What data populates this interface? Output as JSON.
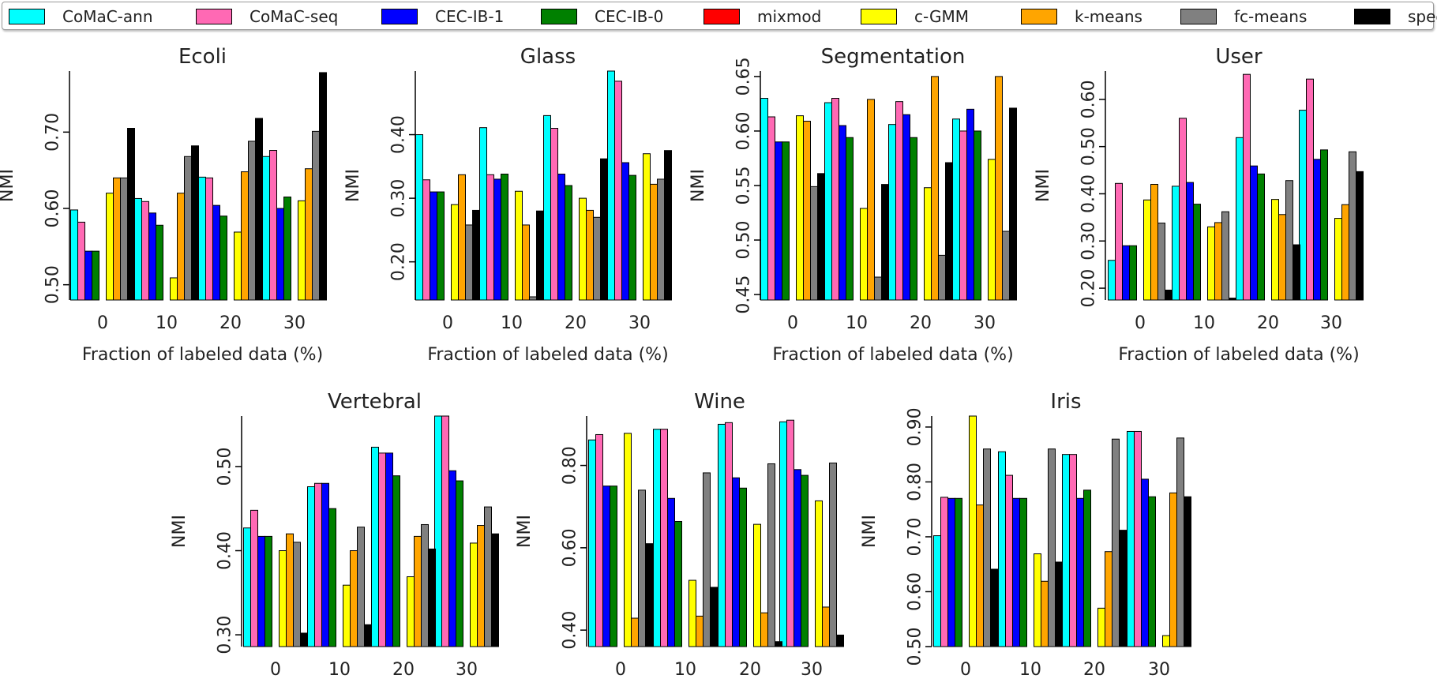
{
  "legend": {
    "items": [
      {
        "label": "CoMaC-ann",
        "color": "#00FFFF"
      },
      {
        "label": "CoMaC-seq",
        "color": "#FF69B4"
      },
      {
        "label": "CEC-IB-1",
        "color": "#0000FF"
      },
      {
        "label": "CEC-IB-0",
        "color": "#008000"
      },
      {
        "label": "mixmod",
        "color": "#FF0000"
      },
      {
        "label": "c-GMM",
        "color": "#FFFF00"
      },
      {
        "label": "k-means",
        "color": "#FFA500"
      },
      {
        "label": "fc-means",
        "color": "#808080"
      },
      {
        "label": "spec",
        "color": "#000000"
      }
    ]
  },
  "chart_data": [
    {
      "type": "bar",
      "title": "Ecoli",
      "xlabel": "Fraction of labeled data (%)",
      "ylabel": "NMI",
      "categories": [
        "0",
        "10",
        "20",
        "30"
      ],
      "ylim": [
        0.48,
        0.78
      ],
      "yticks": [
        0.5,
        0.6,
        0.7
      ],
      "ytick_labels": [
        "0.50",
        "0.60",
        "0.70"
      ],
      "series": [
        {
          "name": "CoMaC-ann",
          "values": [
            0.598,
            0.613,
            0.641,
            0.668
          ]
        },
        {
          "name": "CoMaC-seq",
          "values": [
            0.582,
            0.609,
            0.64,
            0.676
          ]
        },
        {
          "name": "CEC-IB-1",
          "values": [
            0.544,
            0.594,
            0.604,
            0.6
          ]
        },
        {
          "name": "CEC-IB-0",
          "values": [
            0.544,
            0.578,
            0.59,
            0.615
          ]
        },
        {
          "name": "mixmod",
          "values": [
            null,
            null,
            null,
            null
          ]
        },
        {
          "name": "c-GMM",
          "values": [
            0.62,
            0.509,
            0.569,
            0.61
          ]
        },
        {
          "name": "k-means",
          "values": [
            0.64,
            0.62,
            0.648,
            0.652
          ]
        },
        {
          "name": "fc-means",
          "values": [
            0.64,
            0.668,
            0.688,
            0.701
          ]
        },
        {
          "name": "spec",
          "values": [
            0.705,
            0.682,
            0.718,
            0.778
          ]
        }
      ]
    },
    {
      "type": "bar",
      "title": "Glass",
      "xlabel": "Fraction of labeled data (%)",
      "ylabel": "NMI",
      "categories": [
        "0",
        "10",
        "20",
        "30"
      ],
      "ylim": [
        0.14,
        0.5
      ],
      "yticks": [
        0.2,
        0.3,
        0.4
      ],
      "ytick_labels": [
        "0.20",
        "0.30",
        "0.40"
      ],
      "series": [
        {
          "name": "CoMaC-ann",
          "values": [
            0.4,
            0.411,
            0.43,
            0.5
          ]
        },
        {
          "name": "CoMaC-seq",
          "values": [
            0.329,
            0.337,
            0.41,
            0.484
          ]
        },
        {
          "name": "CEC-IB-1",
          "values": [
            0.31,
            0.33,
            0.338,
            0.356
          ]
        },
        {
          "name": "CEC-IB-0",
          "values": [
            0.31,
            0.338,
            0.32,
            0.336
          ]
        },
        {
          "name": "mixmod",
          "values": [
            null,
            null,
            null,
            null
          ]
        },
        {
          "name": "c-GMM",
          "values": [
            0.29,
            0.311,
            0.3,
            0.37
          ]
        },
        {
          "name": "k-means",
          "values": [
            0.337,
            0.258,
            0.281,
            0.322
          ]
        },
        {
          "name": "fc-means",
          "values": [
            0.258,
            0.145,
            0.27,
            0.33
          ]
        },
        {
          "name": "spec",
          "values": [
            0.281,
            0.28,
            0.362,
            0.375
          ]
        }
      ]
    },
    {
      "type": "bar",
      "title": "Segmentation",
      "xlabel": "Fraction of labeled data (%)",
      "ylabel": "NMI",
      "categories": [
        "0",
        "10",
        "20",
        "30"
      ],
      "ylim": [
        0.445,
        0.655
      ],
      "yticks": [
        0.45,
        0.5,
        0.55,
        0.6,
        0.65
      ],
      "ytick_labels": [
        "0.45",
        "0.50",
        "0.55",
        "0.60",
        "0.65"
      ],
      "series": [
        {
          "name": "CoMaC-ann",
          "values": [
            0.63,
            0.626,
            0.606,
            0.611
          ]
        },
        {
          "name": "CoMaC-seq",
          "values": [
            0.613,
            0.63,
            0.627,
            0.6
          ]
        },
        {
          "name": "CEC-IB-1",
          "values": [
            0.59,
            0.605,
            0.615,
            0.62
          ]
        },
        {
          "name": "CEC-IB-0",
          "values": [
            0.59,
            0.594,
            0.594,
            0.6
          ]
        },
        {
          "name": "mixmod",
          "values": [
            null,
            null,
            null,
            null
          ]
        },
        {
          "name": "c-GMM",
          "values": [
            0.614,
            0.529,
            0.548,
            0.574
          ]
        },
        {
          "name": "k-means",
          "values": [
            0.609,
            0.629,
            0.65,
            0.65
          ]
        },
        {
          "name": "fc-means",
          "values": [
            0.549,
            0.466,
            0.486,
            0.508
          ]
        },
        {
          "name": "spec",
          "values": [
            0.561,
            0.551,
            0.571,
            0.621
          ]
        }
      ]
    },
    {
      "type": "bar",
      "title": "User",
      "xlabel": "Fraction of labeled data (%)",
      "ylabel": "NMI",
      "categories": [
        "0",
        "10",
        "20",
        "30"
      ],
      "ylim": [
        0.175,
        0.66
      ],
      "yticks": [
        0.2,
        0.3,
        0.4,
        0.5,
        0.6
      ],
      "ytick_labels": [
        "0.20",
        "0.30",
        "0.40",
        "0.50",
        "0.60"
      ],
      "series": [
        {
          "name": "CoMaC-ann",
          "values": [
            0.259,
            0.416,
            0.519,
            0.577
          ]
        },
        {
          "name": "CoMaC-seq",
          "values": [
            0.422,
            0.56,
            0.653,
            0.643
          ]
        },
        {
          "name": "CEC-IB-1",
          "values": [
            0.29,
            0.424,
            0.459,
            0.473
          ]
        },
        {
          "name": "CEC-IB-0",
          "values": [
            0.29,
            0.378,
            0.442,
            0.493
          ]
        },
        {
          "name": "mixmod",
          "values": [
            null,
            null,
            null,
            null
          ]
        },
        {
          "name": "c-GMM",
          "values": [
            0.387,
            0.33,
            0.388,
            0.348
          ]
        },
        {
          "name": "k-means",
          "values": [
            0.42,
            0.339,
            0.356,
            0.377
          ]
        },
        {
          "name": "fc-means",
          "values": [
            0.338,
            0.362,
            0.428,
            0.489
          ]
        },
        {
          "name": "spec",
          "values": [
            0.196,
            0.179,
            0.292,
            0.447
          ]
        }
      ]
    },
    {
      "type": "bar",
      "title": "Vertebral",
      "xlabel": "",
      "ylabel": "NMI",
      "categories": [
        "0",
        "10",
        "20",
        "30"
      ],
      "ylim": [
        0.286,
        0.56
      ],
      "yticks": [
        0.3,
        0.4,
        0.5
      ],
      "ytick_labels": [
        "0.30",
        "0.40",
        "0.50"
      ],
      "series": [
        {
          "name": "CoMaC-ann",
          "values": [
            0.427,
            0.476,
            0.523,
            0.56
          ]
        },
        {
          "name": "CoMaC-seq",
          "values": [
            0.448,
            0.48,
            0.516,
            0.56
          ]
        },
        {
          "name": "CEC-IB-1",
          "values": [
            0.417,
            0.48,
            0.516,
            0.495
          ]
        },
        {
          "name": "CEC-IB-0",
          "values": [
            0.417,
            0.45,
            0.489,
            0.483
          ]
        },
        {
          "name": "mixmod",
          "values": [
            null,
            null,
            null,
            null
          ]
        },
        {
          "name": "c-GMM",
          "values": [
            0.4,
            0.359,
            0.369,
            0.409
          ]
        },
        {
          "name": "k-means",
          "values": [
            0.42,
            0.4,
            0.417,
            0.43
          ]
        },
        {
          "name": "fc-means",
          "values": [
            0.41,
            0.428,
            0.431,
            0.452
          ]
        },
        {
          "name": "spec",
          "values": [
            0.302,
            0.312,
            0.402,
            0.42
          ]
        }
      ]
    },
    {
      "type": "bar",
      "title": "Wine",
      "xlabel": "",
      "ylabel": "NMI",
      "categories": [
        "0",
        "10",
        "20",
        "30"
      ],
      "ylim": [
        0.36,
        0.92
      ],
      "yticks": [
        0.4,
        0.6,
        0.8
      ],
      "ytick_labels": [
        "0.40",
        "0.60",
        "0.80"
      ],
      "series": [
        {
          "name": "CoMaC-ann",
          "values": [
            0.862,
            0.888,
            0.9,
            0.906
          ]
        },
        {
          "name": "CoMaC-seq",
          "values": [
            0.875,
            0.888,
            0.904,
            0.91
          ]
        },
        {
          "name": "CEC-IB-1",
          "values": [
            0.75,
            0.72,
            0.77,
            0.79
          ]
        },
        {
          "name": "CEC-IB-0",
          "values": [
            0.75,
            0.664,
            0.745,
            0.776
          ]
        },
        {
          "name": "mixmod",
          "values": [
            null,
            null,
            null,
            null
          ]
        },
        {
          "name": "c-GMM",
          "values": [
            0.878,
            0.521,
            0.657,
            0.714
          ]
        },
        {
          "name": "k-means",
          "values": [
            0.429,
            0.434,
            0.442,
            0.456
          ]
        },
        {
          "name": "fc-means",
          "values": [
            0.74,
            0.782,
            0.804,
            0.806
          ]
        },
        {
          "name": "spec",
          "values": [
            0.61,
            0.504,
            0.372,
            0.388
          ]
        }
      ]
    },
    {
      "type": "bar",
      "title": "Iris",
      "xlabel": "",
      "ylabel": "NMI",
      "categories": [
        "0",
        "10",
        "20",
        "30"
      ],
      "ylim": [
        0.5,
        0.92
      ],
      "yticks": [
        0.5,
        0.6,
        0.7,
        0.8,
        0.9
      ],
      "ytick_labels": [
        "0.50",
        "0.60",
        "0.70",
        "0.80",
        "0.90"
      ],
      "series": [
        {
          "name": "CoMaC-ann",
          "values": [
            0.702,
            0.855,
            0.85,
            0.892
          ]
        },
        {
          "name": "CoMaC-seq",
          "values": [
            0.772,
            0.812,
            0.85,
            0.892
          ]
        },
        {
          "name": "CEC-IB-1",
          "values": [
            0.77,
            0.77,
            0.77,
            0.805
          ]
        },
        {
          "name": "CEC-IB-0",
          "values": [
            0.77,
            0.77,
            0.785,
            0.773
          ]
        },
        {
          "name": "mixmod",
          "values": [
            null,
            null,
            null,
            null
          ]
        },
        {
          "name": "c-GMM",
          "values": [
            0.92,
            0.669,
            0.57,
            0.52
          ]
        },
        {
          "name": "k-means",
          "values": [
            0.758,
            0.619,
            0.673,
            0.78
          ]
        },
        {
          "name": "fc-means",
          "values": [
            0.86,
            0.86,
            0.878,
            0.88
          ]
        },
        {
          "name": "spec",
          "values": [
            0.641,
            0.654,
            0.712,
            0.773
          ]
        }
      ]
    }
  ]
}
